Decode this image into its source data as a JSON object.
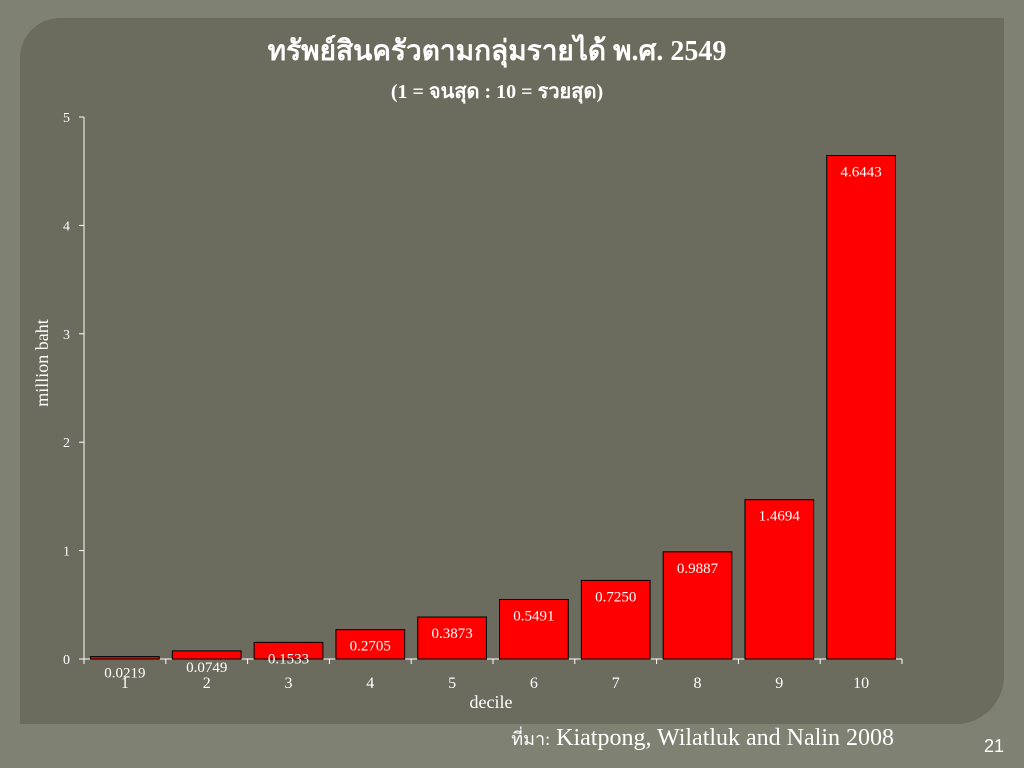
{
  "slide": {
    "page_number": "21",
    "source_prefix": "ที่มา:",
    "source_text": "Kiatpong, Wilatluk and Nalin 2008"
  },
  "colors": {
    "background": "#7f8273",
    "panel": "#6b6b5e",
    "bar_fill": "#ff0000",
    "text": "#ffffff"
  },
  "chart_data": {
    "type": "bar",
    "title": "ทรัพย์สินครัวตามกลุ่มรายได้ พ.ศ. 2549",
    "subtitle": "(1 = จนสุด : 10 = รวยสุด)",
    "xlabel": "decile",
    "ylabel": "million baht",
    "categories": [
      "1",
      "2",
      "3",
      "4",
      "5",
      "6",
      "7",
      "8",
      "9",
      "10"
    ],
    "values": [
      0.0219,
      0.0749,
      0.1533,
      0.2705,
      0.3873,
      0.5491,
      0.725,
      0.9887,
      1.4694,
      4.6443
    ],
    "value_labels": [
      "0.0219",
      "0.0749",
      "0.1533",
      "0.2705",
      "0.3873",
      "0.5491",
      "0.7250",
      "0.9887",
      "1.4694",
      "4.6443"
    ],
    "ylim": [
      0,
      5
    ],
    "yticks": [
      "0",
      "1",
      "2",
      "3",
      "4",
      "5"
    ],
    "grid": false,
    "legend": "none"
  }
}
